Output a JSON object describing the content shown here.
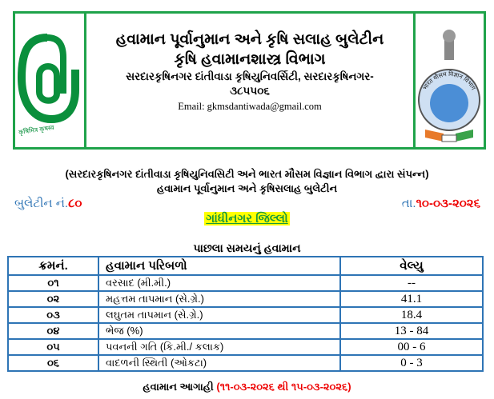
{
  "header": {
    "left_logo_text": "कृषिमित्र कृषस्व",
    "title_line1": "હવામાન પૂર્વાનુમાન અને કૃષિ સલાહ બુલેટીન",
    "title_line2": "કૃષિ હવામાનશાસ્ત્ર વિભાગ",
    "address": "સરદારકૃષિનગર દાંતીવાડા કૃષિયુનિવર્સિટી, સરદારકૃષિનગર-",
    "pin": "૩૮૫૫૦૬",
    "email": "Email: gkmsdantiwada@gmail.com",
    "right_logo_text": "भारत मौसम विज्ञान विभाग"
  },
  "intro": {
    "line1": "(સરદારકૃષિનગર દાંતીવાડા કૃષિયુનિવસિટી અને ભારત મૌસમ વિજ્ઞાન વિભાગ દ્વારા સંપન્ન)",
    "line2": "હવામાન પૂર્વાનુમાન અને કૃષિસલાહ બુલેટીન"
  },
  "bulletin": {
    "label": "બુલેટીન નં.",
    "number": "૮૦",
    "date_label": "તા.",
    "date": "૧૦-૦૩-૨૦૨૬"
  },
  "district": "ગાંધીનગર જિલ્લો",
  "past_weather": {
    "title": "પાછલા સમયનું હવામાન",
    "headers": [
      "ક્રમનં.",
      "હવામાન પરિબળો",
      "વેલ્યુ"
    ],
    "rows": [
      [
        "૦૧",
        "વરસાદ (મી.મી.)",
        "--"
      ],
      [
        "૦૨",
        "મહત્તમ તાપમાન (સે.ગ્રે.)",
        "41.1"
      ],
      [
        "૦૩",
        "લઘુતમ તાપમાન (સે.ગ્રે.)",
        "18.4"
      ],
      [
        "૦૪",
        "ભેજ (%)",
        "13 - 84"
      ],
      [
        "૦૫",
        "પવનની ગતિ (કિ.મી./ કલાક)",
        "00 - 6"
      ],
      [
        "૦૬",
        "વાદળની સ્થિતી (ઓકટા)",
        "0 - 3"
      ]
    ]
  },
  "forecast": {
    "label": "હવામાન આગાહી",
    "range": "(૧૧-૦૩-૨૦૨૬ થી ૧૫-૦૩-૨૦૨૬)"
  },
  "colors": {
    "border_green": "#1fa34a",
    "table_blue": "#2e74b5",
    "red": "#e00000",
    "highlight": "#ffff00"
  }
}
